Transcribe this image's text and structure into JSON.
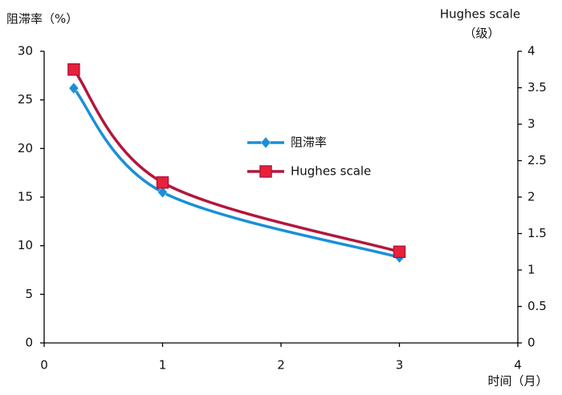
{
  "chart_data": {
    "type": "line",
    "y_label": "阻滞率（%）",
    "y2_label": [
      "Hughes scale",
      "（级）"
    ],
    "x_label": "时间（月）",
    "x": [
      0.25,
      1,
      3
    ],
    "series": [
      {
        "name": "阻滞率",
        "color": "#1a8fd8",
        "marker": "diamond",
        "values": [
          26.2,
          15.5,
          8.8
        ]
      },
      {
        "name": "Hughes scale",
        "color": "#b3163d",
        "marker": "square",
        "axis": "y2",
        "values": [
          3.75,
          2.2,
          1.25
        ]
      }
    ],
    "xlim": [
      0,
      4
    ],
    "xticks": [
      0,
      1,
      2,
      3,
      4
    ],
    "ylim": [
      0,
      30
    ],
    "yticks": [
      0,
      5,
      10,
      15,
      20,
      25,
      30
    ],
    "y2lim": [
      0,
      4
    ],
    "y2ticks": [
      0,
      0.5,
      1,
      1.5,
      2,
      2.5,
      3,
      3.5,
      4
    ],
    "grid": false,
    "smooth": true,
    "legend": "center"
  }
}
